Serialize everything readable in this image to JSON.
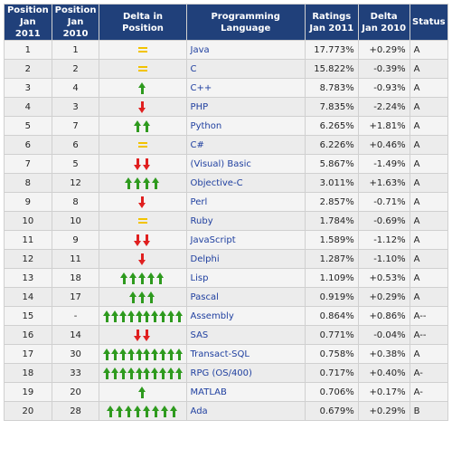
{
  "headers": {
    "pos2011": "Position\nJan 2011",
    "pos2010": "Position\nJan 2010",
    "delta_pos": "Delta in Position",
    "lang": "Programming Language",
    "ratings": "Ratings\nJan 2011",
    "delta": "Delta\nJan 2010",
    "status": "Status"
  },
  "colors": {
    "header_bg": "#20407a",
    "up": "#2e9a1e",
    "down": "#e02020",
    "equal": "#f2c300",
    "lang_text": "#2040a0"
  },
  "icons": {
    "up": "green-up-arrow-icon",
    "down": "red-down-arrow-icon",
    "equal": "yellow-equal-icon"
  },
  "rows": [
    {
      "p11": "1",
      "p10": "1",
      "trend": "equal",
      "n": 1,
      "lang": "Java",
      "rating": "17.773%",
      "delta": "+0.29%",
      "status": "A"
    },
    {
      "p11": "2",
      "p10": "2",
      "trend": "equal",
      "n": 1,
      "lang": "C",
      "rating": "15.822%",
      "delta": "-0.39%",
      "status": "A"
    },
    {
      "p11": "3",
      "p10": "4",
      "trend": "up",
      "n": 1,
      "lang": "C++",
      "rating": "8.783%",
      "delta": "-0.93%",
      "status": "A"
    },
    {
      "p11": "4",
      "p10": "3",
      "trend": "down",
      "n": 1,
      "lang": "PHP",
      "rating": "7.835%",
      "delta": "-2.24%",
      "status": "A"
    },
    {
      "p11": "5",
      "p10": "7",
      "trend": "up",
      "n": 2,
      "lang": "Python",
      "rating": "6.265%",
      "delta": "+1.81%",
      "status": "A"
    },
    {
      "p11": "6",
      "p10": "6",
      "trend": "equal",
      "n": 1,
      "lang": "C#",
      "rating": "6.226%",
      "delta": "+0.46%",
      "status": "A"
    },
    {
      "p11": "7",
      "p10": "5",
      "trend": "down",
      "n": 2,
      "lang": "(Visual) Basic",
      "rating": "5.867%",
      "delta": "-1.49%",
      "status": "A"
    },
    {
      "p11": "8",
      "p10": "12",
      "trend": "up",
      "n": 4,
      "lang": "Objective-C",
      "rating": "3.011%",
      "delta": "+1.63%",
      "status": "A"
    },
    {
      "p11": "9",
      "p10": "8",
      "trend": "down",
      "n": 1,
      "lang": "Perl",
      "rating": "2.857%",
      "delta": "-0.71%",
      "status": "A"
    },
    {
      "p11": "10",
      "p10": "10",
      "trend": "equal",
      "n": 1,
      "lang": "Ruby",
      "rating": "1.784%",
      "delta": "-0.69%",
      "status": "A"
    },
    {
      "p11": "11",
      "p10": "9",
      "trend": "down",
      "n": 2,
      "lang": "JavaScript",
      "rating": "1.589%",
      "delta": "-1.12%",
      "status": "A"
    },
    {
      "p11": "12",
      "p10": "11",
      "trend": "down",
      "n": 1,
      "lang": "Delphi",
      "rating": "1.287%",
      "delta": "-1.10%",
      "status": "A"
    },
    {
      "p11": "13",
      "p10": "18",
      "trend": "up",
      "n": 5,
      "lang": "Lisp",
      "rating": "1.109%",
      "delta": "+0.53%",
      "status": "A"
    },
    {
      "p11": "14",
      "p10": "17",
      "trend": "up",
      "n": 3,
      "lang": "Pascal",
      "rating": "0.919%",
      "delta": "+0.29%",
      "status": "A"
    },
    {
      "p11": "15",
      "p10": "-",
      "trend": "up",
      "n": 10,
      "lang": "Assembly",
      "rating": "0.864%",
      "delta": "+0.86%",
      "status": "A--"
    },
    {
      "p11": "16",
      "p10": "14",
      "trend": "down",
      "n": 2,
      "lang": "SAS",
      "rating": "0.771%",
      "delta": "-0.04%",
      "status": "A--"
    },
    {
      "p11": "17",
      "p10": "30",
      "trend": "up",
      "n": 10,
      "lang": "Transact-SQL",
      "rating": "0.758%",
      "delta": "+0.38%",
      "status": "A"
    },
    {
      "p11": "18",
      "p10": "33",
      "trend": "up",
      "n": 10,
      "lang": "RPG (OS/400)",
      "rating": "0.717%",
      "delta": "+0.40%",
      "status": "A-"
    },
    {
      "p11": "19",
      "p10": "20",
      "trend": "up",
      "n": 1,
      "lang": "MATLAB",
      "rating": "0.706%",
      "delta": "+0.17%",
      "status": "A-"
    },
    {
      "p11": "20",
      "p10": "28",
      "trend": "up",
      "n": 8,
      "lang": "Ada",
      "rating": "0.679%",
      "delta": "+0.29%",
      "status": "B"
    }
  ]
}
